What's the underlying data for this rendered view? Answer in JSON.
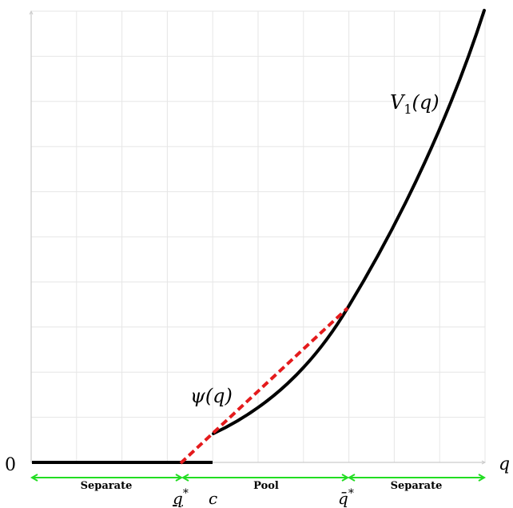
{
  "axes": {
    "origin_label": "0",
    "x_axis_label": "q"
  },
  "curves": {
    "v1_label": "V",
    "v1_subscript": "1",
    "v1_suffix": "(q)",
    "psi_label": "ψ(q)"
  },
  "ticks": {
    "q_lower": "q",
    "q_lower_sup": "*",
    "c": "c",
    "q_upper": "q̄",
    "q_upper_sup": "*"
  },
  "regions": {
    "left": "Separate",
    "middle": "Pool",
    "right": "Separate"
  },
  "colors": {
    "curve": "#000000",
    "dashed": "#e41a1c",
    "region_arrow": "#22dd22",
    "grid": "#e6e6e6",
    "axis": "#cccccc"
  }
}
